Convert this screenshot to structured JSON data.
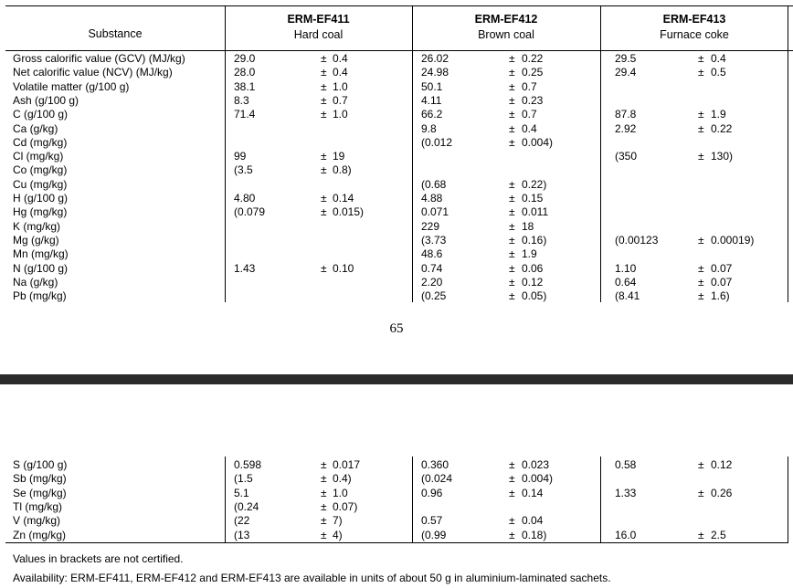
{
  "header": {
    "substance": "Substance",
    "materials": [
      {
        "code": "ERM-EF411",
        "name": "Hard coal"
      },
      {
        "code": "ERM-EF412",
        "name": "Brown coal"
      },
      {
        "code": "ERM-EF413",
        "name": "Furnace coke"
      }
    ]
  },
  "rows_page1": [
    {
      "s": "Gross calorific value (GCV) (MJ/kg)",
      "a": "29.0",
      "ap": "±",
      "au": "0.4",
      "b": "26.02",
      "bp": "±",
      "bu": "0.22",
      "c": "29.5",
      "cp": "±",
      "cu": "0.4"
    },
    {
      "s": "Net calorific value (NCV) (MJ/kg)",
      "a": "28.0",
      "ap": "±",
      "au": "0.4",
      "b": "24.98",
      "bp": "±",
      "bu": "0.25",
      "c": "29.4",
      "cp": "±",
      "cu": "0.5"
    },
    {
      "s": "Volatile matter (g/100 g)",
      "a": "38.1",
      "ap": "±",
      "au": "1.0",
      "b": "50.1",
      "bp": "±",
      "bu": "0.7",
      "c": "",
      "cp": "",
      "cu": ""
    },
    {
      "s": "Ash (g/100 g)",
      "a": "8.3",
      "ap": "±",
      "au": "0.7",
      "b": "4.11",
      "bp": "±",
      "bu": "0.23",
      "c": "",
      "cp": "",
      "cu": ""
    },
    {
      "s": "C (g/100 g)",
      "a": "71.4",
      "ap": "±",
      "au": "1.0",
      "b": "66.2",
      "bp": "±",
      "bu": "0.7",
      "c": "87.8",
      "cp": "±",
      "cu": "1.9"
    },
    {
      "s": "Ca (g/kg)",
      "a": "",
      "ap": "",
      "au": "",
      "b": "9.8",
      "bp": "±",
      "bu": "0.4",
      "c": "2.92",
      "cp": "±",
      "cu": "0.22"
    },
    {
      "s": "Cd (mg/kg)",
      "a": "",
      "ap": "",
      "au": "",
      "b": "(0.012",
      "bp": "±",
      "bu": "0.004)",
      "c": "",
      "cp": "",
      "cu": ""
    },
    {
      "s": "Cl (mg/kg)",
      "a": "99",
      "ap": "±",
      "au": "19",
      "b": "",
      "bp": "",
      "bu": "",
      "c": "(350",
      "cp": "±",
      "cu": "130)"
    },
    {
      "s": "Co (mg/kg)",
      "a": "(3.5",
      "ap": "±",
      "au": "0.8)",
      "b": "",
      "bp": "",
      "bu": "",
      "c": "",
      "cp": "",
      "cu": ""
    },
    {
      "s": "Cu (mg/kg)",
      "a": "",
      "ap": "",
      "au": "",
      "b": "(0.68",
      "bp": "±",
      "bu": "0.22)",
      "c": "",
      "cp": "",
      "cu": ""
    },
    {
      "s": "H (g/100 g)",
      "a": "4.80",
      "ap": "±",
      "au": "0.14",
      "b": "4.88",
      "bp": "±",
      "bu": "0.15",
      "c": "",
      "cp": "",
      "cu": ""
    },
    {
      "s": "Hg (mg/kg)",
      "a": "(0.079",
      "ap": "±",
      "au": "0.015)",
      "b": "0.071",
      "bp": "±",
      "bu": "0.011",
      "c": "",
      "cp": "",
      "cu": ""
    },
    {
      "s": "K (mg/kg)",
      "a": "",
      "ap": "",
      "au": "",
      "b": "229",
      "bp": "±",
      "bu": "18",
      "c": "",
      "cp": "",
      "cu": ""
    },
    {
      "s": "Mg (g/kg)",
      "a": "",
      "ap": "",
      "au": "",
      "b": "(3.73",
      "bp": "±",
      "bu": "0.16)",
      "c": "(0.00123",
      "cp": "±",
      "cu": "0.00019)"
    },
    {
      "s": "Mn (mg/kg)",
      "a": "",
      "ap": "",
      "au": "",
      "b": "48.6",
      "bp": "±",
      "bu": "1.9",
      "c": "",
      "cp": "",
      "cu": ""
    },
    {
      "s": "N (g/100 g)",
      "a": "1.43",
      "ap": "±",
      "au": "0.10",
      "b": "0.74",
      "bp": "±",
      "bu": "0.06",
      "c": "1.10",
      "cp": "±",
      "cu": "0.07"
    },
    {
      "s": "Na (g/kg)",
      "a": "",
      "ap": "",
      "au": "",
      "b": "2.20",
      "bp": "±",
      "bu": "0.12",
      "c": "0.64",
      "cp": "±",
      "cu": "0.07"
    },
    {
      "s": "Pb (mg/kg)",
      "a": "",
      "ap": "",
      "au": "",
      "b": "(0.25",
      "bp": "±",
      "bu": "0.05)",
      "c": "(8.41",
      "cp": "±",
      "cu": "1.6)"
    }
  ],
  "page_number": "65",
  "rows_page2": [
    {
      "s": "S (g/100 g)",
      "a": "0.598",
      "ap": "±",
      "au": "0.017",
      "b": "0.360",
      "bp": "±",
      "bu": "0.023",
      "c": "0.58",
      "cp": "±",
      "cu": "0.12"
    },
    {
      "s": "Sb (mg/kg)",
      "a": "(1.5",
      "ap": "±",
      "au": "0.4)",
      "b": "(0.024",
      "bp": "±",
      "bu": "0.004)",
      "c": "",
      "cp": "",
      "cu": ""
    },
    {
      "s": "Se (mg/kg)",
      "a": "5.1",
      "ap": "±",
      "au": "1.0",
      "b": "0.96",
      "bp": "±",
      "bu": "0.14",
      "c": "1.33",
      "cp": "±",
      "cu": "0.26"
    },
    {
      "s": "Tl (mg/kg)",
      "a": "(0.24",
      "ap": "±",
      "au": "0.07)",
      "b": "",
      "bp": "",
      "bu": "",
      "c": "",
      "cp": "",
      "cu": ""
    },
    {
      "s": "V (mg/kg)",
      "a": "(22",
      "ap": "±",
      "au": "7)",
      "b": "0.57",
      "bp": "±",
      "bu": "0.04",
      "c": "",
      "cp": "",
      "cu": ""
    },
    {
      "s": "Zn (mg/kg)",
      "a": "(13",
      "ap": "±",
      "au": "4)",
      "b": "(0.99",
      "bp": "±",
      "bu": "0.18)",
      "c": "16.0",
      "cp": "±",
      "cu": "2.5"
    }
  ],
  "notes": [
    "Values in brackets are not certified.",
    "Availability: ERM-EF411, ERM-EF412 and ERM-EF413 are available in units of about 50 g in aluminium-laminated sachets."
  ]
}
